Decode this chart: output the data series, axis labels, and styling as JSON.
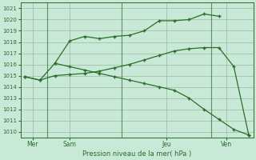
{
  "background_color": "#c8e8d8",
  "grid_color": "#99bb99",
  "line_color": "#2a6e2a",
  "xlabel_text": "Pression niveau de la mer( hPa )",
  "ylim": [
    1009.5,
    1021.5
  ],
  "yticks": [
    1010,
    1011,
    1012,
    1013,
    1014,
    1015,
    1016,
    1017,
    1018,
    1019,
    1020,
    1021
  ],
  "xlim": [
    -0.3,
    15.3
  ],
  "xtick_positions": [
    0.5,
    3,
    9.5,
    13.5
  ],
  "xtick_labels": [
    "Mer",
    "Sam",
    "Jeu",
    "Ven"
  ],
  "vline_positions": [
    1.5,
    6.5,
    12.5
  ],
  "line1_x": [
    0,
    1,
    2,
    3,
    4,
    5,
    6,
    7,
    8,
    9,
    10,
    11,
    12,
    13,
    14,
    15
  ],
  "line1_y": [
    1014.9,
    1014.6,
    1015.0,
    1015.1,
    1015.2,
    1015.4,
    1015.7,
    1016.0,
    1016.4,
    1016.8,
    1017.2,
    1017.4,
    1017.5,
    1017.5,
    1015.8,
    1009.7
  ],
  "line2_x": [
    0,
    1,
    2,
    3,
    4,
    5,
    6,
    7,
    8,
    9,
    10,
    11,
    12,
    13
  ],
  "line2_y": [
    1014.9,
    1014.6,
    1016.1,
    1018.1,
    1018.5,
    1018.3,
    1018.5,
    1018.6,
    1019.0,
    1019.9,
    1019.9,
    1020.0,
    1020.5,
    1020.3
  ],
  "line3_x": [
    2,
    3,
    4,
    5,
    6,
    7,
    8,
    9,
    10,
    11,
    12,
    13,
    14,
    15
  ],
  "line3_y": [
    1016.1,
    1015.8,
    1015.5,
    1015.2,
    1014.9,
    1014.6,
    1014.3,
    1014.0,
    1013.7,
    1013.0,
    1012.0,
    1011.1,
    1010.2,
    1009.7
  ]
}
